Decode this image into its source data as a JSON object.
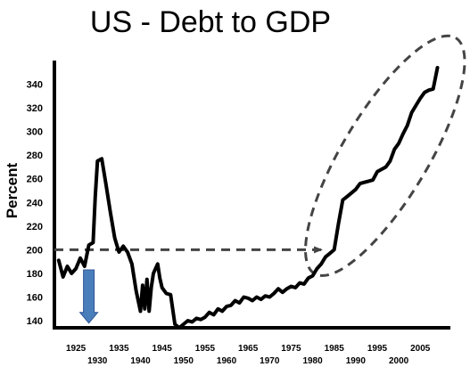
{
  "chart_data": {
    "type": "line",
    "title": "US - Debt to GDP",
    "ylabel": "Percent",
    "xlabel": "",
    "xlim": [
      1920,
      2012
    ],
    "ylim": [
      134,
      360
    ],
    "yticks": [
      140,
      160,
      180,
      200,
      220,
      240,
      260,
      280,
      300,
      320,
      340
    ],
    "xticks_upper": [
      1925,
      1935,
      1945,
      1955,
      1965,
      1975,
      1985,
      1995,
      2005
    ],
    "xticks_lower": [
      1930,
      1940,
      1950,
      1960,
      1970,
      1980,
      1990,
      2000
    ],
    "grid": false,
    "legend": "none",
    "colors": {
      "line": "#000000",
      "annotation": "#444444",
      "arrow": "#4a7ebb",
      "arrow_edge": "#2f5597"
    },
    "series": [
      {
        "x": [
          1921,
          1922,
          1923,
          1924,
          1925,
          1926,
          1927,
          1928,
          1929,
          1929.5,
          1930,
          1931,
          1932,
          1933,
          1934,
          1935,
          1936,
          1937,
          1938,
          1939,
          1940,
          1940.5,
          1941,
          1941.5,
          1942,
          1942.5,
          1943,
          1944,
          1944.5,
          1945,
          1946,
          1947,
          1948,
          1949,
          1950,
          1951,
          1952,
          1953,
          1954,
          1955,
          1956,
          1957,
          1958,
          1959,
          1960,
          1961,
          1962,
          1963,
          1964,
          1965,
          1966,
          1967,
          1968,
          1969,
          1970,
          1971,
          1972,
          1973,
          1974,
          1975,
          1976,
          1977,
          1978,
          1979,
          1980,
          1981,
          1982,
          1983,
          1984,
          1985,
          1986,
          1987,
          1988,
          1989,
          1990,
          1991,
          1992,
          1993,
          1994,
          1995,
          1996,
          1997,
          1998,
          1999,
          2000,
          2001,
          2002,
          2003,
          2004,
          2005,
          2006,
          2007,
          2008,
          2009
        ],
        "values": [
          191,
          177,
          186,
          180,
          184,
          193,
          186,
          204,
          206,
          245,
          275,
          277,
          255,
          232,
          210,
          198,
          203,
          198,
          188,
          165,
          148,
          170,
          150,
          175,
          148,
          168,
          180,
          188,
          176,
          168,
          163,
          162,
          137,
          134,
          137,
          140,
          139,
          142,
          141,
          143,
          147,
          145,
          150,
          148,
          152,
          153,
          157,
          155,
          160,
          159,
          157,
          160,
          158,
          161,
          160,
          163,
          167,
          164,
          167,
          169,
          168,
          172,
          171,
          176,
          178,
          184,
          188,
          194,
          197,
          200,
          222,
          242,
          245,
          248,
          251,
          256,
          257,
          258,
          259,
          266,
          268,
          270,
          275,
          285,
          290,
          298,
          305,
          316,
          322,
          328,
          333,
          335,
          336,
          354
        ]
      }
    ],
    "annotations": [
      {
        "type": "dashed-line",
        "y": 200,
        "x_start": 1920,
        "x_end": 1983
      },
      {
        "type": "arrow-down",
        "x": 1928,
        "y_start": 183,
        "y_end": 138
      },
      {
        "type": "dashed-ellipse",
        "around_x": [
          1983,
          2009
        ],
        "around_y": [
          196,
          354
        ]
      }
    ]
  }
}
